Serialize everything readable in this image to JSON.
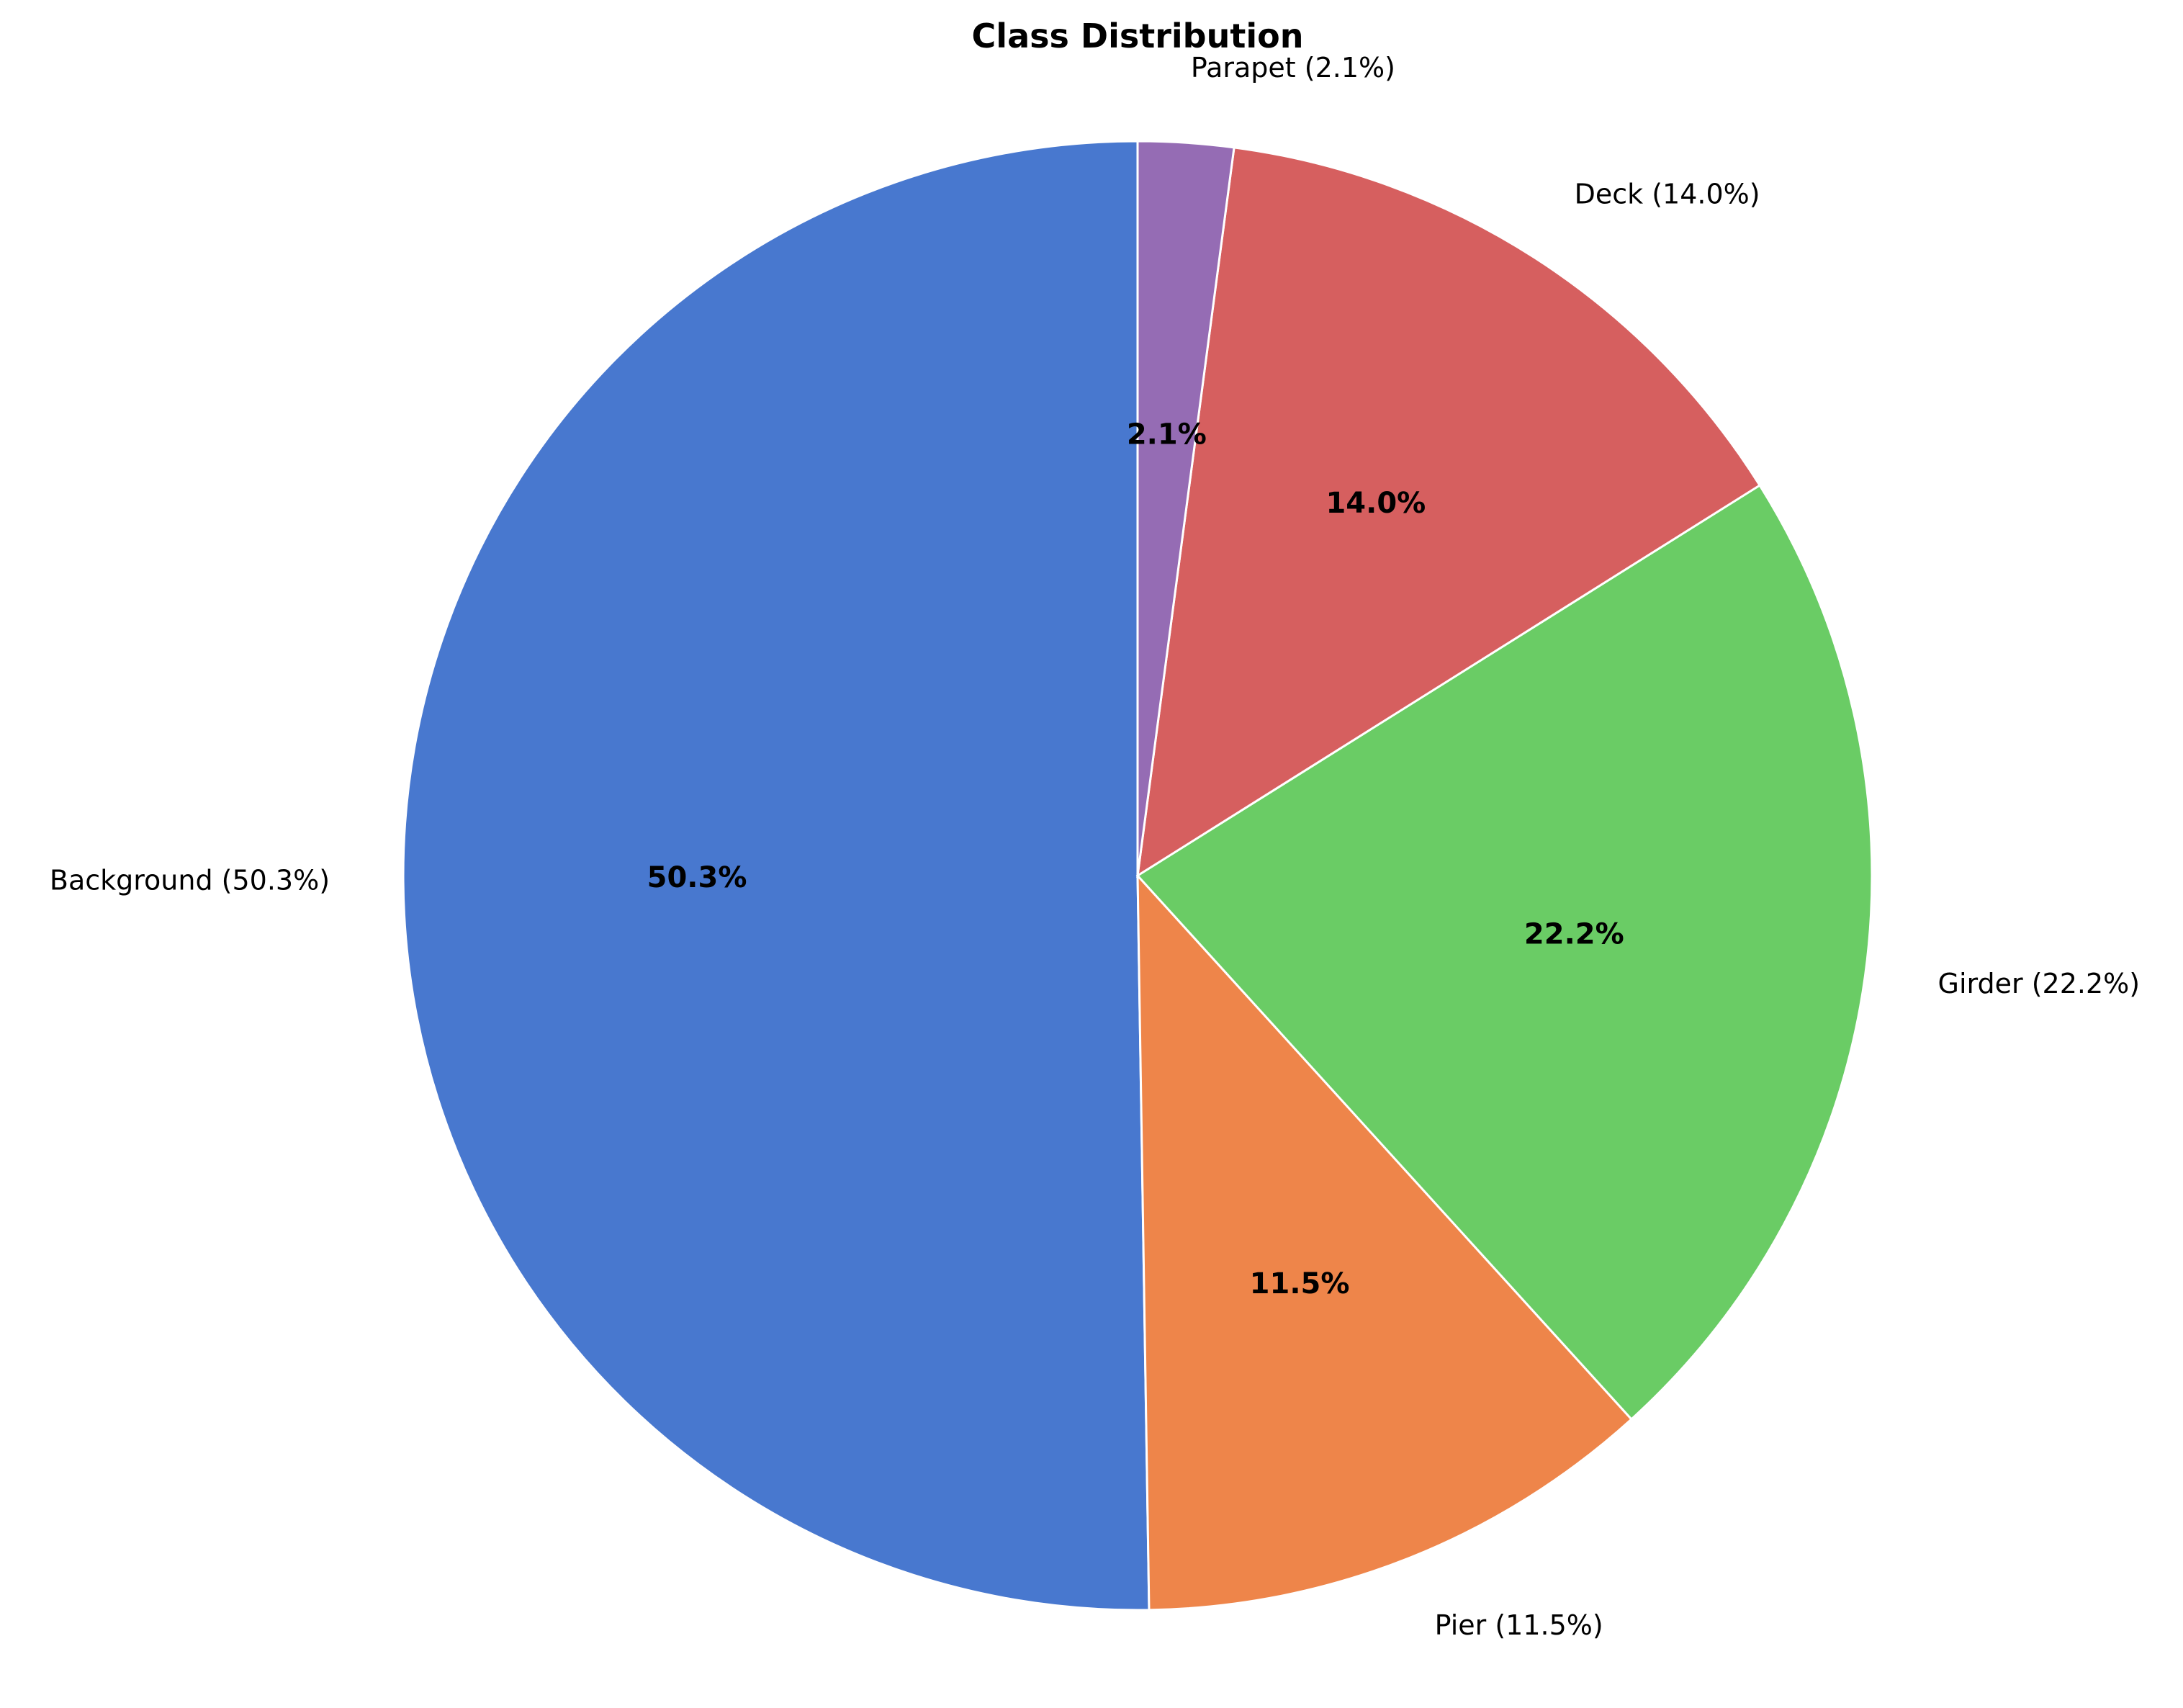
{
  "chart_data": {
    "type": "pie",
    "title": "Class Distribution",
    "start_angle_deg": 90,
    "direction": "counterclockwise",
    "slices": [
      {
        "name": "Background",
        "value": 50.3,
        "label": "Background (50.3%)",
        "pct_label": "50.3%",
        "color": "#4878cf"
      },
      {
        "name": "Pier",
        "value": 11.5,
        "label": "Pier (11.5%)",
        "pct_label": "11.5%",
        "color": "#ee854a"
      },
      {
        "name": "Girder",
        "value": 22.2,
        "label": "Girder (22.2%)",
        "pct_label": "22.2%",
        "color": "#6acc65"
      },
      {
        "name": "Deck",
        "value": 14.0,
        "label": "Deck (14.0%)",
        "pct_label": "14.0%",
        "color": "#d65f5f"
      },
      {
        "name": "Parapet",
        "value": 2.1,
        "label": "Parapet (2.1%)",
        "pct_label": "2.1%",
        "color": "#956cb4"
      }
    ]
  }
}
